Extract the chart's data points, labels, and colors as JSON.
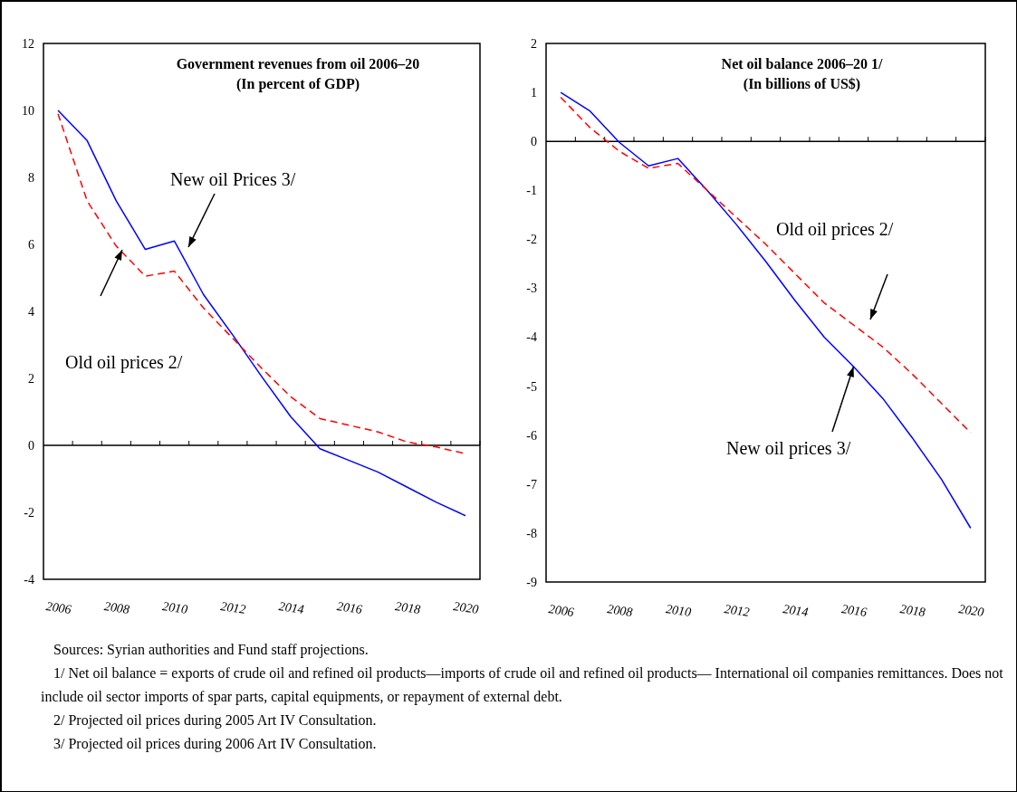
{
  "chart_data": [
    {
      "type": "line",
      "title": "Government revenues from oil  2006–20\n(In percent of GDP)",
      "categories": [
        "2006",
        null,
        "2008",
        null,
        "2010",
        null,
        "2012",
        null,
        "2014",
        null,
        "2016",
        null,
        "2018",
        null,
        "2020"
      ],
      "series": [
        {
          "color": "#0000ff",
          "line_style": "solid",
          "values": [
            10,
            9.1,
            7.3,
            5.85,
            6.1,
            4.5,
            3.3,
            2.05,
            0.85,
            -0.1,
            -0.45,
            -0.8,
            -1.25,
            -1.7,
            -2.1
          ]
        },
        {
          "color": "#ff0000",
          "line_style": "dashed",
          "values": [
            9.9,
            7.3,
            5.95,
            5.05,
            5.2,
            4.1,
            3.2,
            2.3,
            1.45,
            0.8,
            0.6,
            0.4,
            0.1,
            -0.05,
            -0.25
          ]
        }
      ],
      "ylim": [
        -4,
        12
      ],
      "yticks": [
        -4,
        -2,
        0,
        2,
        4,
        6,
        8,
        10,
        12
      ],
      "annotations": [
        "New oil Prices 3/",
        "Old oil prices 2/",
        "Sources: Syrian authorities and Fund staff projections.",
        "1/ Net oil balance = exports of crude oil and refined oil products—imports of crude oil and refined oil products— International oil companies remittances. Does not include oil sector imports of spar parts, capital equipments, or repayment of external debt.",
        "2/ Projected oil prices during 2005 Art IV Consultation.",
        "3/ Projected oil prices during 2006 Art IV Consultation."
      ]
    },
    {
      "type": "line",
      "title": "Net oil balance  2006–20 1/\n(In billions of US$)",
      "categories": [
        "2006",
        null,
        "2008",
        null,
        "2010",
        null,
        "2012",
        null,
        "2014",
        null,
        "2016",
        null,
        "2018",
        null,
        "2020"
      ],
      "series": [
        {
          "color": "#0000ff",
          "line_style": "solid",
          "values": [
            1.0,
            0.62,
            -0.02,
            -0.5,
            -0.35,
            -1.0,
            -1.7,
            -2.45,
            -3.25,
            -4.0,
            -4.6,
            -5.25,
            -6.05,
            -6.9,
            -7.9
          ]
        },
        {
          "color": "#ff0000",
          "line_style": "dashed",
          "values": [
            0.9,
            0.28,
            -0.2,
            -0.55,
            -0.45,
            -1.0,
            -1.55,
            -2.1,
            -2.7,
            -3.3,
            -3.75,
            -4.2,
            -4.75,
            -5.35,
            -5.95
          ]
        }
      ],
      "ylim": [
        -9,
        2
      ],
      "yticks": [
        -9,
        -8,
        -7,
        -6,
        -5,
        -4,
        -3,
        -2,
        -1,
        0,
        1,
        2
      ],
      "annotations": [
        "Old oil prices 2/",
        {
          "text": "New oil prices 3/",
          "x": "2016",
          "y": -4.6
        }
      ]
    }
  ]
}
